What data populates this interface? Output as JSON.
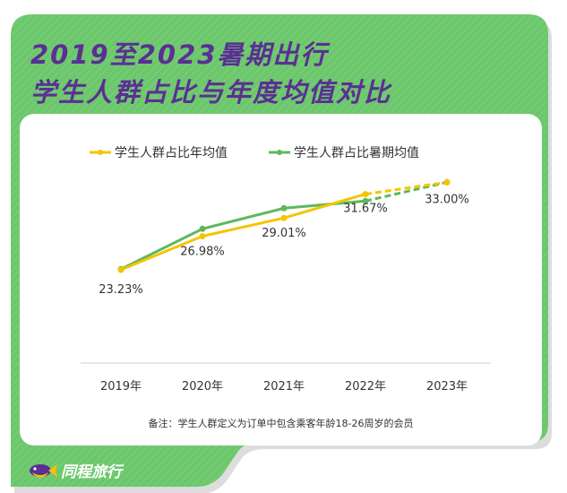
{
  "title_line1": "2019至2023暑期出行",
  "title_line2": "学生人群占比与年度均值对比",
  "note": "备注：学生人群定义为订单中包含乘客年龄18-26周岁的会员",
  "brand": "同程旅行",
  "colors": {
    "frame": "#6cc76c",
    "title": "#5b2f94",
    "annual": "#f5c400",
    "summer": "#5cb85c"
  },
  "chart_data": {
    "type": "line",
    "categories": [
      "2019年",
      "2020年",
      "2021年",
      "2022年",
      "2023年"
    ],
    "series": [
      {
        "name": "学生人群占比年均值",
        "values": [
          23.23,
          26.98,
          29.01,
          31.67,
          33.0
        ],
        "labels": [
          "23.23%",
          "26.98%",
          "29.01%",
          "31.67%",
          "33.00%"
        ],
        "dashed_from_index": 3
      },
      {
        "name": "学生人群占比暑期均值",
        "values": [
          23.3,
          27.8,
          30.1,
          30.9,
          33.0
        ],
        "dashed_from_index": 3
      }
    ],
    "ylim": [
      14,
      36
    ],
    "legend": "top-left",
    "grid": false
  }
}
